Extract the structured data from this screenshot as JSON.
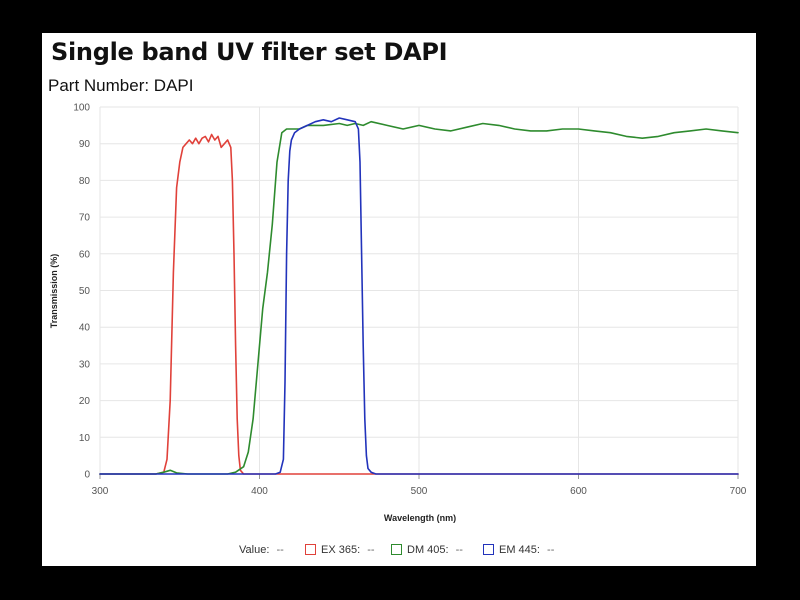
{
  "header": {
    "title": "Single band UV filter set DAPI",
    "part_number": "Part Number: DAPI"
  },
  "legend": {
    "value_label": "Value:",
    "value_placeholder": "--",
    "items": [
      {
        "name": "EX 365:",
        "value": "--",
        "color": "#e0413a"
      },
      {
        "name": "DM 405:",
        "value": "--",
        "color": "#2e8b2e"
      },
      {
        "name": "EM 445:",
        "value": "--",
        "color": "#2233bb"
      }
    ]
  },
  "chart_data": {
    "type": "line",
    "title": "",
    "xlabel": "Wavelength (nm)",
    "ylabel": "Transmission (%)",
    "xlim": [
      300,
      700
    ],
    "ylim": [
      0,
      100
    ],
    "xticks": [
      300,
      400,
      500,
      600,
      700
    ],
    "yticks": [
      0,
      10,
      20,
      30,
      40,
      50,
      60,
      70,
      80,
      90,
      100
    ],
    "grid": true,
    "legend_position": "bottom",
    "series": [
      {
        "name": "EX 365",
        "color": "#e0413a",
        "x": [
          300,
          335,
          340,
          342,
          344,
          346,
          348,
          350,
          352,
          354,
          356,
          358,
          360,
          362,
          364,
          366,
          368,
          370,
          372,
          374,
          376,
          378,
          380,
          382,
          383,
          384,
          385,
          386,
          387,
          388,
          390,
          395,
          700
        ],
        "y": [
          0,
          0,
          0.5,
          4,
          20,
          55,
          78,
          85,
          89,
          90,
          91,
          90,
          91.5,
          90,
          91.5,
          92,
          90.5,
          92.5,
          91,
          92,
          89,
          90,
          91,
          89,
          80,
          60,
          35,
          15,
          5,
          1,
          0,
          0,
          0
        ]
      },
      {
        "name": "DM 405",
        "color": "#2e8b2e",
        "x": [
          300,
          335,
          340,
          344,
          348,
          355,
          380,
          385,
          390,
          393,
          396,
          399,
          402,
          405,
          408,
          411,
          414,
          417,
          420,
          425,
          430,
          440,
          450,
          455,
          460,
          465,
          470,
          480,
          490,
          500,
          510,
          520,
          530,
          540,
          550,
          560,
          570,
          580,
          590,
          600,
          610,
          620,
          630,
          640,
          650,
          660,
          670,
          680,
          690,
          700
        ],
        "y": [
          0,
          0,
          0.5,
          1,
          0.3,
          0,
          0,
          0.5,
          2,
          6,
          15,
          30,
          45,
          55,
          68,
          85,
          93,
          94,
          94,
          94,
          95,
          95,
          95.5,
          95,
          95.5,
          95,
          96,
          95,
          94,
          95,
          94,
          93.5,
          94.5,
          95.5,
          95,
          94,
          93.5,
          93.5,
          94,
          94,
          93.5,
          93,
          92,
          91.5,
          92,
          93,
          93.5,
          94,
          93.5,
          93
        ]
      },
      {
        "name": "EM 445",
        "color": "#2233bb",
        "x": [
          300,
          410,
          413,
          415,
          416,
          417,
          418,
          419,
          420,
          422,
          425,
          430,
          435,
          440,
          445,
          450,
          455,
          460,
          462,
          463,
          464,
          465,
          466,
          467,
          468,
          470,
          473,
          700
        ],
        "y": [
          0,
          0,
          0.5,
          4,
          25,
          60,
          80,
          88,
          91,
          93,
          94,
          95,
          96,
          96.5,
          96,
          97,
          96.5,
          96,
          94,
          85,
          60,
          35,
          15,
          5,
          1.5,
          0.5,
          0,
          0
        ]
      }
    ]
  }
}
